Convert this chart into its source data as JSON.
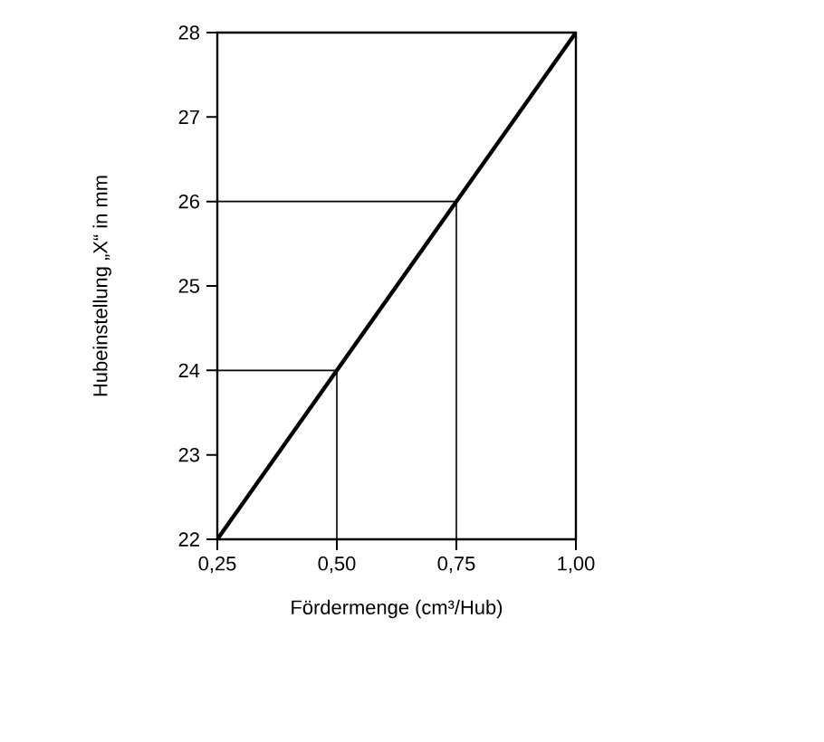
{
  "chart_data": {
    "type": "line",
    "xlabel": "Fördermenge (cm³/Hub)",
    "ylabel": "Hubeinstellung „X“ in mm",
    "xlim": [
      0.25,
      1.0
    ],
    "ylim": [
      22,
      28
    ],
    "xticks": [
      {
        "value": 0.25,
        "label": "0,25"
      },
      {
        "value": 0.5,
        "label": "0,50"
      },
      {
        "value": 0.75,
        "label": "0,75"
      },
      {
        "value": 1.0,
        "label": "1,00"
      }
    ],
    "yticks": [
      22,
      23,
      24,
      25,
      26,
      27,
      28
    ],
    "grid": false,
    "marker": "none",
    "line_style": "solid",
    "series": [
      {
        "color": "#000000",
        "x": [
          0.25,
          1.0
        ],
        "values": [
          22,
          28
        ]
      },
      {
        "color": "#000000",
        "x": [
          0.25,
          0.5,
          0.5
        ],
        "values": [
          24,
          24,
          22
        ]
      },
      {
        "color": "#000000",
        "x": [
          0.25,
          0.75,
          0.75
        ],
        "values": [
          26,
          26,
          22
        ]
      }
    ]
  }
}
